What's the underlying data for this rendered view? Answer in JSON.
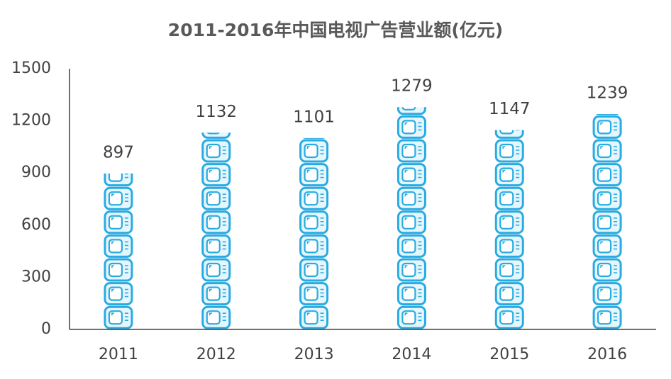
{
  "chart_data": {
    "type": "pictogram-bar",
    "title": "2011-2016年中国电视广告营业额(亿元)",
    "categories": [
      "2011",
      "2012",
      "2013",
      "2014",
      "2015",
      "2016"
    ],
    "values": [
      897,
      1132,
      1101,
      1279,
      1147,
      1239
    ],
    "color": "#29abe2",
    "ylim": [
      0,
      1500
    ],
    "yticks": [
      0,
      300,
      600,
      900,
      1200,
      1500
    ],
    "grid": false
  }
}
